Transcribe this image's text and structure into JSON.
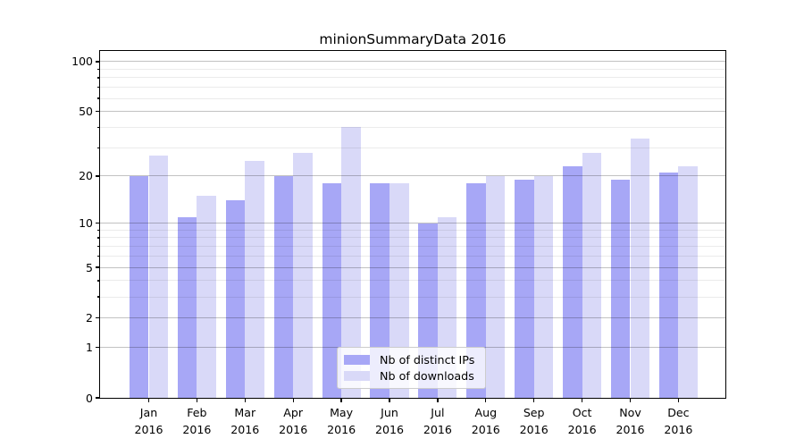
{
  "chart_data": {
    "type": "bar",
    "title": "minionSummaryData 2016",
    "categories": [
      "Jan",
      "Feb",
      "Mar",
      "Apr",
      "May",
      "Jun",
      "Jul",
      "Aug",
      "Sep",
      "Oct",
      "Nov",
      "Dec"
    ],
    "x_tick_second_line": "2016",
    "series": [
      {
        "name": "Nb of distinct IPs",
        "color": "#a7a7f6",
        "values": [
          20,
          11,
          14,
          20,
          18,
          18,
          10,
          18,
          19,
          23,
          19,
          21
        ]
      },
      {
        "name": "Nb of downloads",
        "color": "#d9d9f8",
        "values": [
          27,
          15,
          25,
          28,
          40,
          18,
          11,
          20,
          20,
          28,
          34,
          23
        ]
      }
    ],
    "xlabel": "",
    "ylabel": "",
    "y_scale": "symlog (log1p)",
    "y_major_ticks": [
      0,
      1,
      2,
      5,
      10,
      20,
      50,
      100
    ],
    "y_minor_ticks": [
      3,
      4,
      6,
      7,
      8,
      9,
      30,
      40,
      60,
      70,
      80,
      90
    ],
    "ylim": [
      0,
      116
    ],
    "grid": "horizontal major+minor, drawn over bars",
    "legend_position": "lower center"
  },
  "colors": {
    "background": "#ffffff",
    "axis": "#000000",
    "text": "#000000",
    "grid_major": "rgba(0,0,0,0.24)",
    "grid_minor": "rgba(0,0,0,0.08)",
    "legend_background": "rgba(255,255,255,0.8)",
    "legend_border": "#cccccc"
  }
}
